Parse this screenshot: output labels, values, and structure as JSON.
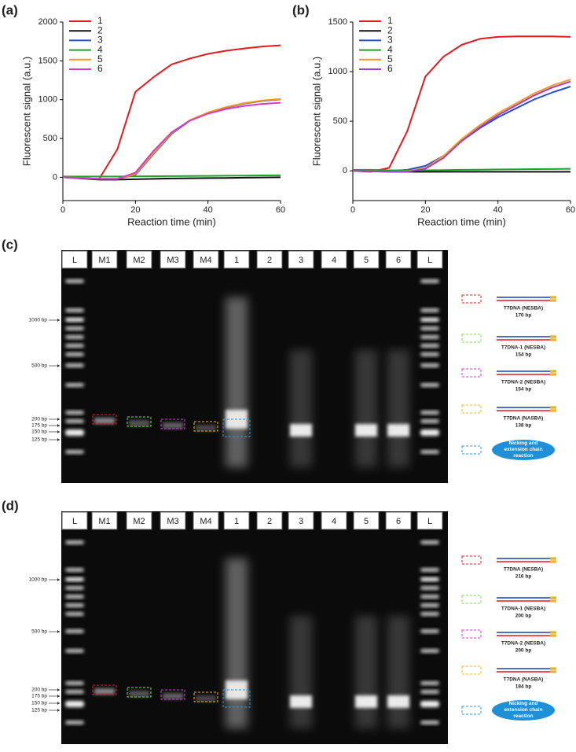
{
  "chart_data": [
    {
      "type": "line",
      "label": "(a)",
      "x_label": "Reaction time (min)",
      "y_label": "Fluorescent signal (a.u.)",
      "x": [
        0,
        5,
        10,
        15,
        20,
        25,
        30,
        35,
        40,
        45,
        50,
        55,
        60
      ],
      "xlim": [
        0,
        60
      ],
      "xticks": [
        0,
        20,
        40,
        60
      ],
      "ylim": [
        -300,
        2000
      ],
      "yticks": [
        0,
        500,
        1000,
        1500,
        2000
      ],
      "legend": "upper left",
      "series": [
        {
          "name": "1",
          "color": "#e41a1c",
          "values": [
            0,
            -10,
            -20,
            360,
            1100,
            1290,
            1455,
            1530,
            1590,
            1630,
            1660,
            1685,
            1700
          ]
        },
        {
          "name": "2",
          "color": "#111111",
          "values": [
            0,
            -15,
            -30,
            -30,
            -25,
            -20,
            -15,
            -12,
            -10,
            -8,
            -5,
            -2,
            0
          ]
        },
        {
          "name": "3",
          "color": "#2b50c8",
          "values": [
            0,
            -10,
            -20,
            -20,
            30,
            300,
            560,
            730,
            830,
            900,
            950,
            985,
            1005
          ]
        },
        {
          "name": "4",
          "color": "#22a02c",
          "values": [
            10,
            10,
            10,
            10,
            12,
            14,
            15,
            17,
            18,
            20,
            22,
            24,
            25
          ]
        },
        {
          "name": "5",
          "color": "#f39a1f",
          "values": [
            0,
            -10,
            -20,
            -20,
            40,
            310,
            570,
            735,
            835,
            905,
            955,
            990,
            1010
          ]
        },
        {
          "name": "6",
          "color": "#d23ad0",
          "values": [
            0,
            -10,
            -20,
            -20,
            60,
            340,
            580,
            730,
            820,
            880,
            920,
            945,
            960
          ]
        }
      ]
    },
    {
      "type": "line",
      "label": "(b)",
      "x_label": "Reaction time (min)",
      "y_label": "Fluorescent signal (a.u.)",
      "x": [
        0,
        5,
        10,
        15,
        20,
        25,
        30,
        35,
        40,
        45,
        50,
        55,
        60
      ],
      "xlim": [
        0,
        60
      ],
      "xticks": [
        0,
        20,
        40,
        60
      ],
      "ylim": [
        -300,
        1500
      ],
      "yticks": [
        0,
        500,
        1000,
        1500
      ],
      "legend": "upper left",
      "series": [
        {
          "name": "1",
          "color": "#e41a1c",
          "values": [
            0,
            -10,
            30,
            400,
            950,
            1150,
            1270,
            1330,
            1350,
            1355,
            1355,
            1355,
            1350
          ]
        },
        {
          "name": "2",
          "color": "#111111",
          "values": [
            0,
            -5,
            -10,
            -10,
            -10,
            -10,
            -10,
            -10,
            -10,
            -10,
            -10,
            -10,
            -10
          ]
        },
        {
          "name": "3",
          "color": "#2b50c8",
          "values": [
            0,
            0,
            0,
            10,
            50,
            150,
            300,
            430,
            540,
            630,
            720,
            790,
            850
          ]
        },
        {
          "name": "4",
          "color": "#22a02c",
          "values": [
            10,
            10,
            5,
            5,
            5,
            8,
            10,
            12,
            14,
            15,
            17,
            18,
            20
          ]
        },
        {
          "name": "5",
          "color": "#f39a1f",
          "values": [
            0,
            -5,
            -10,
            -5,
            30,
            150,
            320,
            460,
            580,
            680,
            780,
            860,
            920
          ]
        },
        {
          "name": "6",
          "color": "#a040d0",
          "values": [
            0,
            -5,
            -10,
            -10,
            20,
            130,
            300,
            440,
            560,
            660,
            760,
            840,
            900
          ]
        }
      ]
    }
  ],
  "gels": [
    {
      "label": "(c)",
      "lanes": [
        "L",
        "M1",
        "M2",
        "M3",
        "M4",
        "1",
        "2",
        "3",
        "4",
        "5",
        "6",
        "L"
      ],
      "markers": [
        "1000 bp",
        "500 bp",
        "200 bp",
        "175 bp",
        "150 bp",
        "125 bp"
      ],
      "legend": [
        {
          "name": "T7DNA (NESBA)",
          "size": "170 bp",
          "color": "#e41a1c"
        },
        {
          "name": "T7DNA-1 (NESBA)",
          "size": "154 bp",
          "color": "#7bd84a"
        },
        {
          "name": "T7DNA-2 (NESBA)",
          "size": "154 bp",
          "color": "#d23ad0"
        },
        {
          "name": "T7DNA (NASBA)",
          "size": "138 bp",
          "color": "#f3b21f"
        },
        {
          "name": "Nicking and extension chain reaction",
          "color": "#2a9ad8"
        }
      ]
    },
    {
      "label": "(d)",
      "lanes": [
        "L",
        "M1",
        "M2",
        "M3",
        "M4",
        "1",
        "2",
        "3",
        "4",
        "5",
        "6",
        "L"
      ],
      "markers": [
        "1000 bp",
        "500 bp",
        "200 bp",
        "175 bp",
        "150 bp",
        "125 bp"
      ],
      "legend": [
        {
          "name": "T7DNA (NESBA)",
          "size": "216 bp",
          "color": "#e41a1c"
        },
        {
          "name": "T7DNA-1 (NESBA)",
          "size": "200 bp",
          "color": "#7bd84a"
        },
        {
          "name": "T7DNA-2 (NESBA)",
          "size": "200 bp",
          "color": "#d23ad0"
        },
        {
          "name": "T7DNA (NASBA)",
          "size": "184 bp",
          "color": "#f3b21f"
        },
        {
          "name": "Nicking and extension chain reaction",
          "color": "#2a9ad8"
        }
      ]
    }
  ]
}
